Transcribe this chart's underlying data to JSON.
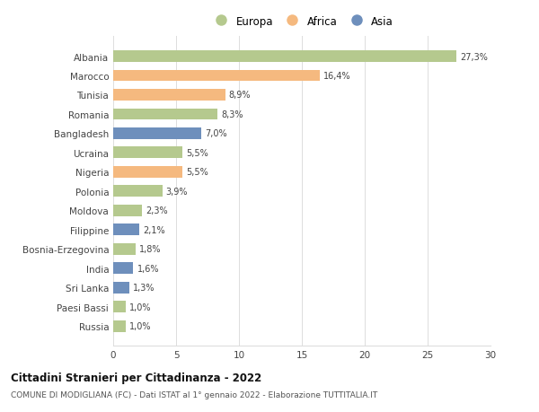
{
  "categories": [
    "Albania",
    "Marocco",
    "Tunisia",
    "Romania",
    "Bangladesh",
    "Ucraina",
    "Nigeria",
    "Polonia",
    "Moldova",
    "Filippine",
    "Bosnia-Erzegovina",
    "India",
    "Sri Lanka",
    "Paesi Bassi",
    "Russia"
  ],
  "values": [
    27.3,
    16.4,
    8.9,
    8.3,
    7.0,
    5.5,
    5.5,
    3.9,
    2.3,
    2.1,
    1.8,
    1.6,
    1.3,
    1.0,
    1.0
  ],
  "labels": [
    "27,3%",
    "16,4%",
    "8,9%",
    "8,3%",
    "7,0%",
    "5,5%",
    "5,5%",
    "3,9%",
    "2,3%",
    "2,1%",
    "1,8%",
    "1,6%",
    "1,3%",
    "1,0%",
    "1,0%"
  ],
  "continents": [
    "Europa",
    "Africa",
    "Africa",
    "Europa",
    "Asia",
    "Europa",
    "Africa",
    "Europa",
    "Europa",
    "Asia",
    "Europa",
    "Asia",
    "Asia",
    "Europa",
    "Europa"
  ],
  "colors": {
    "Europa": "#b5c98e",
    "Africa": "#f5b97f",
    "Asia": "#6e8fbc"
  },
  "legend_labels": [
    "Europa",
    "Africa",
    "Asia"
  ],
  "title": "Cittadini Stranieri per Cittadinanza - 2022",
  "subtitle": "COMUNE DI MODIGLIANA (FC) - Dati ISTAT al 1° gennaio 2022 - Elaborazione TUTTITALIA.IT",
  "xlim": [
    0,
    30
  ],
  "xticks": [
    0,
    5,
    10,
    15,
    20,
    25,
    30
  ],
  "background_color": "#ffffff",
  "grid_color": "#dddddd"
}
